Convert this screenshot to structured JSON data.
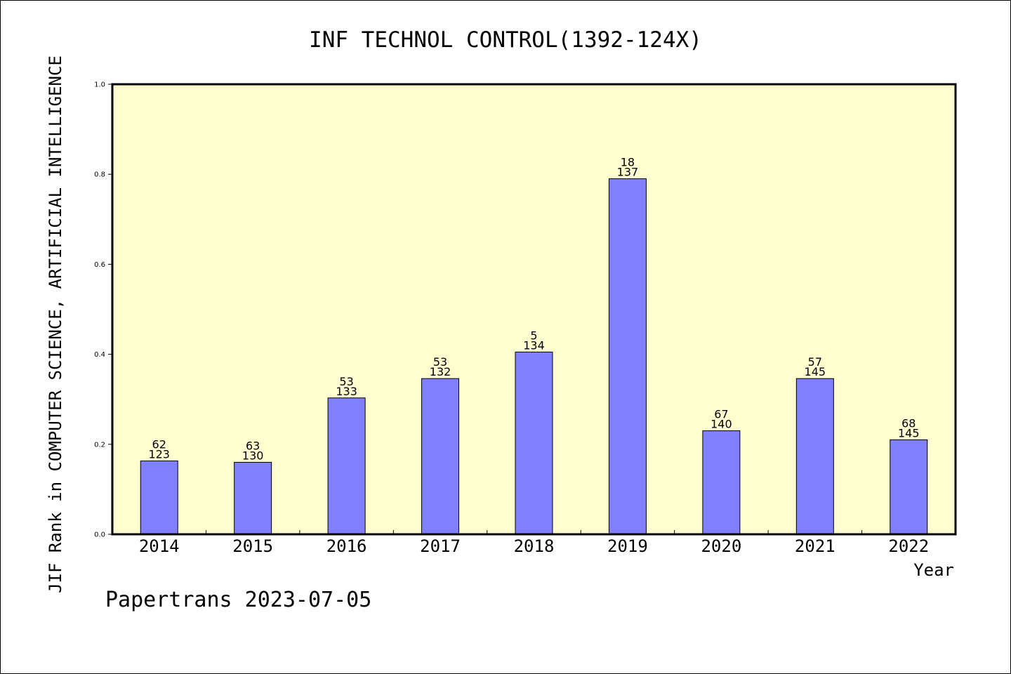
{
  "chart_data": {
    "type": "bar",
    "title": "INF TECHNOL CONTROL(1392-124X)",
    "xlabel": "Year",
    "ylabel": "JIF Rank in COMPUTER SCIENCE, ARTIFICIAL INTELLIGENCE",
    "ylim": [
      0.0,
      1.0
    ],
    "yticks": [
      "0.0",
      "0.2",
      "0.4",
      "0.6",
      "0.8",
      "1.0"
    ],
    "grid": false,
    "categories": [
      "2014",
      "2015",
      "2016",
      "2017",
      "2018",
      "2019",
      "2020",
      "2021",
      "2022"
    ],
    "values": [
      0.163,
      0.16,
      0.303,
      0.346,
      0.405,
      0.79,
      0.23,
      0.346,
      0.21
    ],
    "rank": [
      "62",
      "63",
      "53",
      "53",
      "5",
      "18",
      "67",
      "57",
      "68"
    ],
    "total": [
      "123",
      "130",
      "133",
      "132",
      "134",
      "137",
      "140",
      "145",
      "145"
    ],
    "colors": {
      "bar": "#8080ff",
      "plot_background": "#ffffd0",
      "axis": "#000000"
    }
  },
  "footer": {
    "credit": "Papertrans 2023-07-05"
  }
}
